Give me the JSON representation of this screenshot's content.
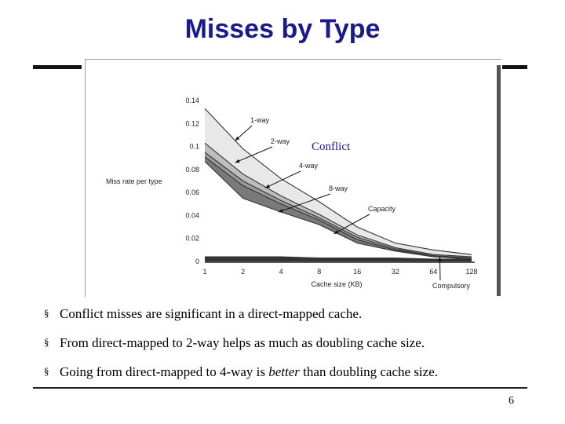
{
  "title": "Misses by Type",
  "colors": {
    "title": "#1a1a8c",
    "conflict_label": "#1a1a8c",
    "band_1way": "#e8e8e8",
    "band_2way": "#bdbdbd",
    "band_4way": "#9a9a9a",
    "band_8way": "#7a7a7a",
    "band_capacity": "#ffffff",
    "band_compulsory": "#333333"
  },
  "chart_data": {
    "type": "area",
    "xlabel": "Cache size (KB)",
    "ylabel": "Miss rate per type",
    "x": [
      "1",
      "2",
      "4",
      "8",
      "16",
      "32",
      "64",
      "128"
    ],
    "yticks": [
      "0",
      "0.02",
      "0.04",
      "0.06",
      "0.08",
      "0.1",
      "0.12",
      "0.14"
    ],
    "ylim": [
      0,
      0.14
    ],
    "series": [
      {
        "name": "1-way",
        "values": [
          0.133,
          0.098,
          0.072,
          0.052,
          0.03,
          0.016,
          0.01,
          0.006
        ]
      },
      {
        "name": "2-way",
        "values": [
          0.103,
          0.076,
          0.057,
          0.041,
          0.023,
          0.012,
          0.006,
          0.004
        ]
      },
      {
        "name": "4-way",
        "values": [
          0.095,
          0.07,
          0.053,
          0.038,
          0.021,
          0.011,
          0.005,
          0.003
        ]
      },
      {
        "name": "8-way",
        "values": [
          0.091,
          0.066,
          0.05,
          0.036,
          0.019,
          0.01,
          0.005,
          0.003
        ]
      },
      {
        "name": "Capacity",
        "values": [
          0.087,
          0.055,
          0.043,
          0.032,
          0.016,
          0.009,
          0.004,
          0.002
        ]
      },
      {
        "name": "Compulsory",
        "values": [
          0.004,
          0.004,
          0.004,
          0.003,
          0.003,
          0.003,
          0.002,
          0.002
        ]
      }
    ],
    "annotations": [
      "1-way",
      "2-way",
      "4-way",
      "8-way",
      "Capacity",
      "Compulsory"
    ],
    "overlay_label": "Conflict",
    "grid": false
  },
  "bullets": [
    {
      "text": "Conflict misses are significant in a direct-mapped cache."
    },
    {
      "text": "From direct-mapped to 2-way helps as much as doubling cache size."
    },
    {
      "pre": "Going from direct-mapped to 4-way is ",
      "em": "better",
      "post": " than doubling cache size."
    }
  ],
  "bullet_mark": "§",
  "page_number": "6"
}
